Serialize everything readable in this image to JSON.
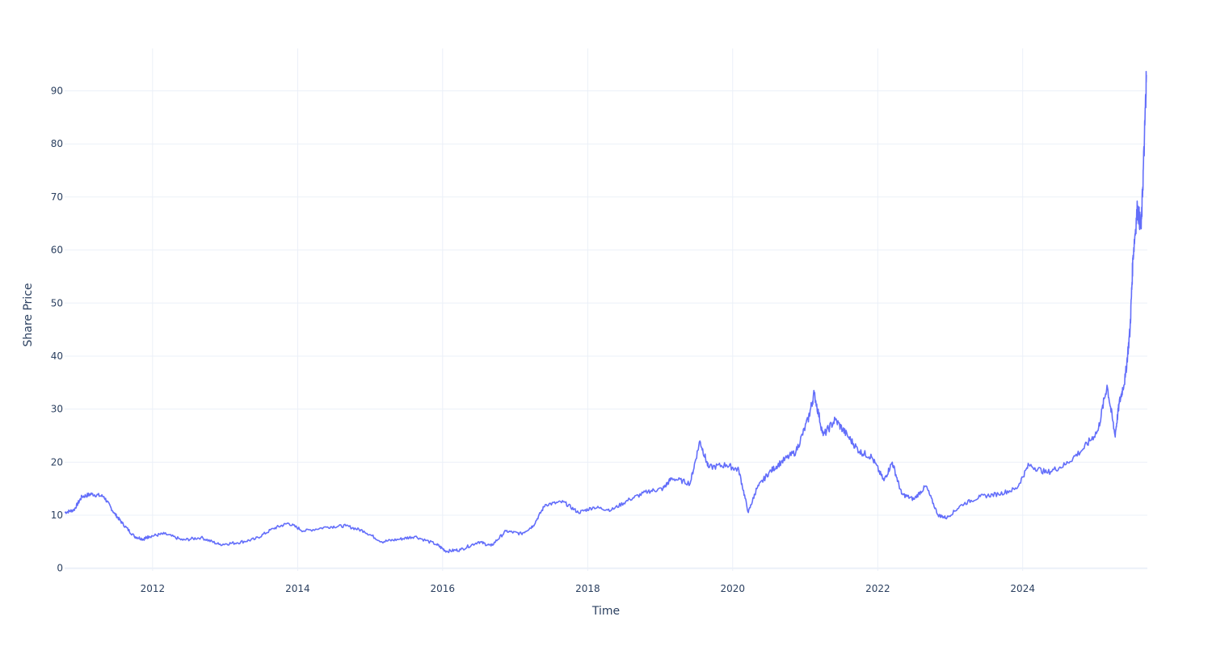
{
  "chart_data": {
    "type": "line",
    "title": "",
    "xlabel": "Time",
    "ylabel": "Share Price",
    "xlim": [
      "2010-10-15",
      "2025-09-20"
    ],
    "ylim": [
      -0.5,
      98
    ],
    "x_ticks": [
      "2012",
      "2014",
      "2016",
      "2018",
      "2020",
      "2022",
      "2024"
    ],
    "y_ticks": [
      "0",
      "10",
      "20",
      "30",
      "40",
      "50",
      "60",
      "70",
      "80",
      "90"
    ],
    "grid": true,
    "legend": "none",
    "colors": {
      "line": "#636efa",
      "grid": "#ebf0f8",
      "text": "#2a3f5f",
      "background": "#ffffff"
    },
    "series": [
      {
        "x": [
          "2010-10-15",
          "2010-12-01",
          "2011-01-10",
          "2011-03-01",
          "2011-05-01",
          "2011-06-20",
          "2011-08-01",
          "2011-10-01",
          "2011-11-15",
          "2011-12-15",
          "2012-03-01",
          "2012-06-01",
          "2012-09-01",
          "2012-12-01",
          "2013-03-01",
          "2013-06-01",
          "2013-09-01",
          "2013-11-15",
          "2014-02-01",
          "2014-06-01",
          "2014-09-01",
          "2014-12-01",
          "2015-03-01",
          "2015-06-01",
          "2015-08-15",
          "2015-12-01",
          "2016-01-20",
          "2016-04-01",
          "2016-07-01",
          "2016-09-01",
          "2016-11-15",
          "2017-02-01",
          "2017-04-01",
          "2017-06-01",
          "2017-09-01",
          "2017-11-15",
          "2018-02-01",
          "2018-05-01",
          "2018-08-01",
          "2018-11-01",
          "2019-01-15",
          "2019-03-01",
          "2019-06-01",
          "2019-07-20",
          "2019-09-01",
          "2019-12-01",
          "2020-02-01",
          "2020-03-20",
          "2020-05-01",
          "2020-07-01",
          "2020-09-01",
          "2020-11-15",
          "2021-01-15",
          "2021-02-15",
          "2021-04-01",
          "2021-06-01",
          "2021-08-01",
          "2021-10-01",
          "2021-12-01",
          "2022-02-01",
          "2022-03-15",
          "2022-05-01",
          "2022-07-01",
          "2022-09-01",
          "2022-11-01",
          "2022-12-15",
          "2023-03-01",
          "2023-06-01",
          "2023-09-01",
          "2023-12-01",
          "2024-02-01",
          "2024-05-01",
          "2024-08-01",
          "2024-11-01",
          "2025-01-15",
          "2025-03-01",
          "2025-04-10",
          "2025-05-01",
          "2025-06-01",
          "2025-06-25",
          "2025-07-10",
          "2025-08-01",
          "2025-08-20",
          "2025-09-05",
          "2025-09-15"
        ],
        "y": [
          10.5,
          11.0,
          13.5,
          14.0,
          13.5,
          10.5,
          8.5,
          6.0,
          5.5,
          6.0,
          6.5,
          5.3,
          5.8,
          4.5,
          4.8,
          5.5,
          7.5,
          8.5,
          7.0,
          7.8,
          8.0,
          7.0,
          5.0,
          5.5,
          6.0,
          4.5,
          3.2,
          3.5,
          5.0,
          4.2,
          7.0,
          6.5,
          8.0,
          12.0,
          12.5,
          10.5,
          11.5,
          11.0,
          13.0,
          14.5,
          15.0,
          17.0,
          16.0,
          24.0,
          19.0,
          19.5,
          18.5,
          10.5,
          15.0,
          18.0,
          20.0,
          22.0,
          28.0,
          33.0,
          25.0,
          28.0,
          25.0,
          22.0,
          21.0,
          16.5,
          20.0,
          14.0,
          13.0,
          15.5,
          10.0,
          9.5,
          12.0,
          13.5,
          14.0,
          15.0,
          19.5,
          18.0,
          19.5,
          22.5,
          26.0,
          34.5,
          25.0,
          31.0,
          36.0,
          45.0,
          59.0,
          68.0,
          64.0,
          80.5,
          93.0
        ]
      }
    ]
  }
}
